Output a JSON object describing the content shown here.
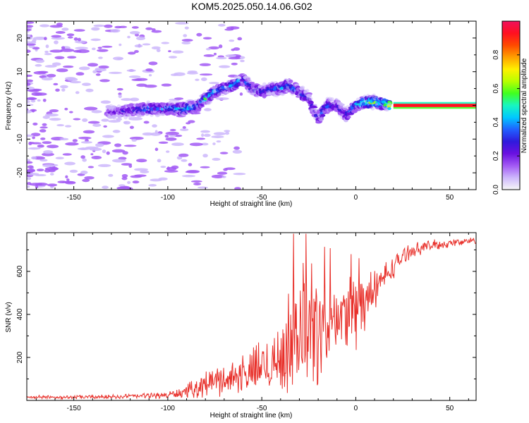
{
  "title": "KOM5.2025.050.14.06.G02",
  "chart_data": [
    {
      "type": "heatmap",
      "title": "KOM5.2025.050.14.06.G02",
      "xlabel": "Height of straight line (km)",
      "ylabel": "Frequency (Hz)",
      "xlim": [
        -175,
        64
      ],
      "ylim": [
        -25,
        25
      ],
      "xticks": [
        -150,
        -100,
        -50,
        0,
        50
      ],
      "yticks": [
        -20,
        -10,
        0,
        10,
        20
      ],
      "colorbar": {
        "label": "Normalized spectral amplitude",
        "range": [
          0,
          1
        ],
        "ticks": [
          0.0,
          0.2,
          0.4,
          0.6,
          0.8
        ],
        "colors": [
          "#f7f7f7",
          "#cdb7fb",
          "#a259f4",
          "#6a10e0",
          "#2f1adc",
          "#2060ff",
          "#00c8ff",
          "#18f6c0",
          "#40ff20",
          "#b8ff00",
          "#fff000",
          "#ffa000",
          "#ff4a00",
          "#ff1020",
          "#f0105c"
        ]
      },
      "ridge": {
        "x": [
          -130,
          -120,
          -110,
          -100,
          -92,
          -85,
          -80,
          -75,
          -70,
          -65,
          -60,
          -55,
          -50,
          -45,
          -40,
          -35,
          -30,
          -25,
          -20,
          -15,
          -10,
          -5,
          0,
          5,
          10,
          15,
          20,
          30,
          40,
          50,
          64
        ],
        "y": [
          -2,
          -1.5,
          -1,
          -1,
          -1,
          -0.5,
          2,
          4,
          5,
          6,
          8,
          5,
          4,
          5,
          5,
          6,
          4,
          2,
          -4,
          0,
          0,
          -3,
          0,
          1,
          1,
          0.5,
          0,
          0,
          0,
          0,
          0
        ],
        "amplitude": [
          0.2,
          0.3,
          0.4,
          0.4,
          0.5,
          0.4,
          0.5,
          0.45,
          0.4,
          0.45,
          0.4,
          0.35,
          0.4,
          0.35,
          0.45,
          0.4,
          0.4,
          0.3,
          0.35,
          0.4,
          0.3,
          0.35,
          0.4,
          0.6,
          0.7,
          0.5,
          1.0,
          1.0,
          1.0,
          1.0,
          1.0
        ]
      },
      "grid": false
    },
    {
      "type": "line",
      "xlabel": "Height of straight line (km)",
      "ylabel": "SNR (v/v)",
      "xlim": [
        -175,
        64
      ],
      "ylim": [
        0,
        780
      ],
      "xticks": [
        -150,
        -100,
        -50,
        0,
        50
      ],
      "yticks": [
        200,
        400,
        600
      ],
      "color": "#e8302a",
      "envelope": {
        "x": [
          -175,
          -150,
          -125,
          -100,
          -90,
          -80,
          -70,
          -60,
          -50,
          -40,
          -35,
          -30,
          -25,
          -20,
          -15,
          -10,
          -5,
          0,
          5,
          10,
          15,
          20,
          25,
          30,
          40,
          50,
          64
        ],
        "mean": [
          15,
          15,
          18,
          25,
          40,
          80,
          100,
          120,
          160,
          200,
          260,
          320,
          350,
          320,
          330,
          380,
          400,
          420,
          460,
          520,
          570,
          620,
          670,
          700,
          720,
          730,
          745
        ],
        "spread": [
          8,
          8,
          10,
          15,
          30,
          60,
          70,
          90,
          120,
          170,
          230,
          300,
          320,
          260,
          180,
          160,
          200,
          190,
          140,
          90,
          70,
          50,
          40,
          30,
          25,
          20,
          15
        ]
      },
      "grid": false
    }
  ]
}
